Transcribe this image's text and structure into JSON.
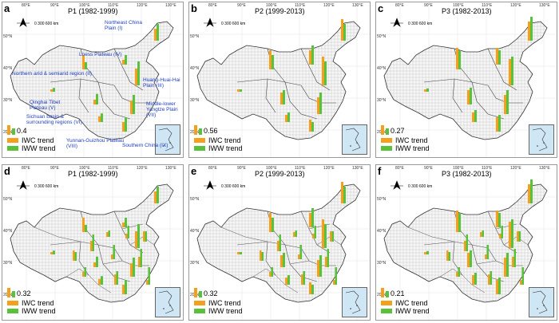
{
  "colors": {
    "iwc": "#f5a01a",
    "iww": "#5ac23a",
    "region_label": "#1f3fbf",
    "map_fill": "#f0f0f0",
    "grid": "#cfcfcf"
  },
  "legend": {
    "iwc": "IWC trend",
    "iww": "IWW trend"
  },
  "panels": [
    {
      "label": "a",
      "title": "P1 (1982-1999)",
      "scale": "0.4",
      "scale_units": "0    300    600 km"
    },
    {
      "label": "b",
      "title": "P2 (1999-2013)",
      "scale": "0.56",
      "scale_units": "0    300    600 km"
    },
    {
      "label": "c",
      "title": "P3 (1982-2013)",
      "scale": "0.27",
      "scale_units": "0    300    600 km"
    },
    {
      "label": "d",
      "title": "P1 (1982-1999)",
      "scale": "0.32",
      "scale_units": "0    300    600 km"
    },
    {
      "label": "e",
      "title": "P2 (1999-2013)",
      "scale": "0.32",
      "scale_units": "0    300    600 km"
    },
    {
      "label": "f",
      "title": "P3 (1982-2013)",
      "scale": "0.21",
      "scale_units": "0    300    600 km"
    }
  ],
  "regions": [
    "Northeast China Plain (I)",
    "Loess Plateau (IV)",
    "Northern arid & semiarid region (II)",
    "Huang-Huai-Hai Plain (III)",
    "Qinghai Tibet Plateau (V)",
    "Sichuan basin & surrounding regions (VI)",
    "Middle-lower Yangtze Plain (VII)",
    "Yunnan-Guizhou Plateau (VIII)",
    "Southern China (IX)"
  ],
  "axis": {
    "top": [
      "80°E",
      "90°E",
      "100°E",
      "110°E",
      "120°E",
      "130°E"
    ],
    "left": [
      "50°N",
      "40°N",
      "30°N",
      "20°N"
    ]
  },
  "bar_values": {
    "a": [
      [
        0.25,
        0.35
      ],
      [
        0.1,
        0.2
      ],
      [
        0.3,
        0.15
      ],
      [
        0.35,
        0.5
      ],
      [
        0.05,
        0.08
      ],
      [
        0.1,
        0.22
      ],
      [
        0.28,
        0.4
      ],
      [
        0.12,
        0.18
      ],
      [
        0.2,
        0.3
      ]
    ],
    "b": [
      [
        0.45,
        0.35
      ],
      [
        0.3,
        0.4
      ],
      [
        0.4,
        0.3
      ],
      [
        0.6,
        0.5
      ],
      [
        0.05,
        0.05
      ],
      [
        0.25,
        0.3
      ],
      [
        0.35,
        0.45
      ],
      [
        0.15,
        0.2
      ],
      [
        0.25,
        0.2
      ]
    ],
    "c": [
      [
        0.4,
        0.5
      ],
      [
        0.35,
        0.3
      ],
      [
        0.45,
        0.4
      ],
      [
        0.55,
        0.6
      ],
      [
        0.05,
        0.07
      ],
      [
        0.3,
        0.35
      ],
      [
        0.4,
        0.5
      ],
      [
        0.2,
        0.25
      ],
      [
        0.3,
        0.35
      ]
    ]
  }
}
